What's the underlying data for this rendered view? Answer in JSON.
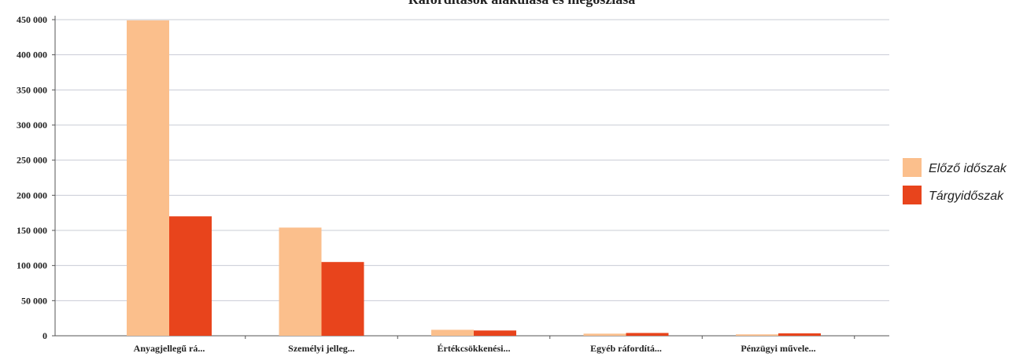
{
  "chart_data": {
    "type": "bar",
    "title": "Ráfordítások alakulása és megoszlása",
    "xlabel": "",
    "ylabel": "",
    "categories": [
      "Anyagjellegű rá...",
      "Személyi jelleg...",
      "Értékcsökkenési...",
      "Egyéb ráfordítá...",
      "Pénzügyi művele..."
    ],
    "series": [
      {
        "name": "Előző időszak",
        "color": "#fbbf8c",
        "values": [
          449000,
          154000,
          8500,
          3000,
          2000
        ]
      },
      {
        "name": "Tárgyidőszak",
        "color": "#e8441c",
        "values": [
          170000,
          105000,
          7500,
          4000,
          3500
        ]
      }
    ],
    "ylim": [
      0,
      450000
    ],
    "yticks": [
      0,
      50000,
      100000,
      150000,
      200000,
      250000,
      300000,
      350000,
      400000,
      450000
    ],
    "ytick_labels": [
      "0",
      "50 000",
      "100 000",
      "150 000",
      "200 000",
      "250 000",
      "300 000",
      "350 000",
      "400 000",
      "450 000"
    ],
    "grid": true,
    "legend_position": "right"
  }
}
